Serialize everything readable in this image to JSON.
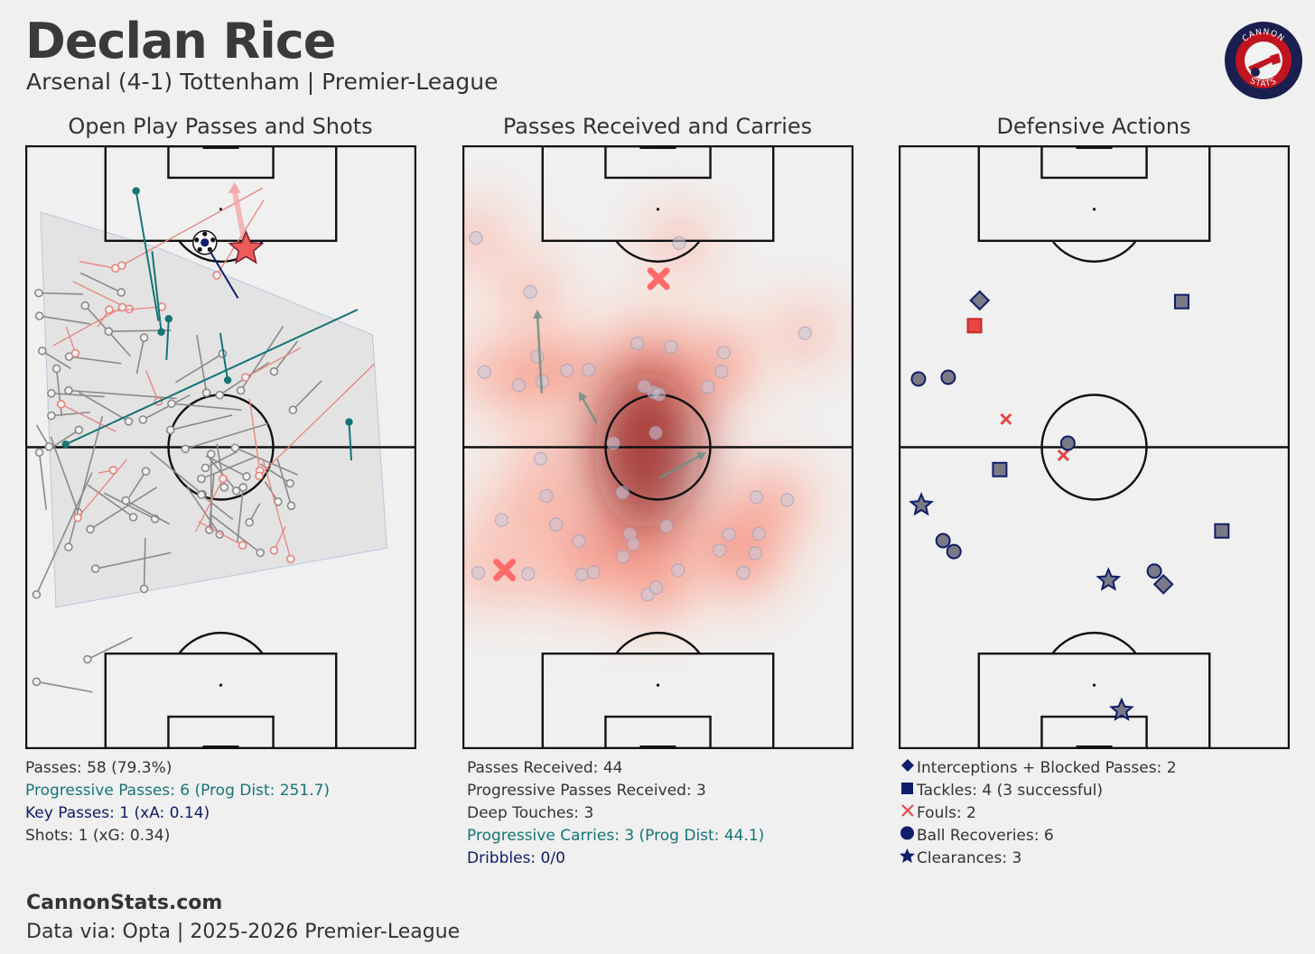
{
  "header": {
    "player": "Declan Rice",
    "match": "Arsenal (4-1) Tottenham | Premier-League",
    "logo_top_text": "CANNON",
    "logo_bottom_text": "STATS"
  },
  "panels": {
    "passes_title": "Open Play Passes and Shots",
    "received_title": "Passes Received and Carries",
    "defensive_title": "Defensive Actions"
  },
  "stats": {
    "passes": "Passes: 58 (79.3%)",
    "progressive_passes": "Progressive Passes: 6 (Prog Dist: 251.7)",
    "key_passes": "Key Passes: 1 (xA: 0.14)",
    "shots": "Shots: 1 (xG: 0.34)",
    "passes_received": "Passes Received: 44",
    "prog_received": "Progressive Passes Received: 3",
    "deep_touches": "Deep Touches: 3",
    "prog_carries": "Progressive Carries: 3 (Prog Dist: 44.1)",
    "dribbles": "Dribbles: 0/0"
  },
  "legend": {
    "interceptions": "Interceptions + Blocked Passes: 2",
    "tackles": "Tackles: 4 (3 successful)",
    "fouls": "Fouls: 2",
    "recoveries": "Ball Recoveries: 6",
    "clearances": "Clearances: 3"
  },
  "footer": {
    "site": "CannonStats.com",
    "source": "Data via: Opta | 2025-2026 Premier-League"
  },
  "colors": {
    "pitch_line": "#111111",
    "completed_pass": "#8a8a8a",
    "failed_pass": "#e8847c",
    "progressive_pass": "#167476",
    "key_pass": "#0f1d6a",
    "shot_star": "#ef5b5b",
    "tackle_success": "#7a7a86",
    "tackle_fail": "#e84545",
    "marker_edge": "#0f1d6a",
    "foul": "#e84545"
  },
  "chart_data": [
    {
      "type": "scatter",
      "title": "Open Play Passes and Shots",
      "units": "pitch coordinates: x 0-68 (left to right), y 0-105 (own goal to opponent goal)",
      "completed_passes": [
        [
          2.2,
          79.4,
          9.9,
          79.2
        ],
        [
          2.3,
          75.4,
          11.2,
          74.0
        ],
        [
          10.3,
          77.2,
          18.2,
          68.4
        ],
        [
          20.6,
          71.6,
          19.3,
          65.3
        ],
        [
          16.6,
          79.5,
          9.5,
          82.9
        ],
        [
          2.8,
          69.3,
          7.8,
          66.2
        ],
        [
          14.4,
          72.7,
          25.3,
          72.9
        ],
        [
          7.5,
          68.3,
          16.6,
          67.1
        ],
        [
          5.3,
          66.2,
          6.2,
          57.9
        ],
        [
          4.4,
          58.0,
          11.2,
          58.6
        ],
        [
          4.4,
          61.9,
          13.7,
          61.3
        ],
        [
          7.4,
          62.4,
          26.3,
          61.0
        ],
        [
          9.2,
          55.5,
          3.6,
          51.9
        ],
        [
          17.9,
          57.0,
          9.2,
          62.1
        ],
        [
          20.4,
          57.3,
          28.6,
          61.6
        ],
        [
          25.2,
          55.5,
          36.0,
          58.1
        ],
        [
          43.3,
          65.7,
          47.4,
          71.0
        ],
        [
          27.8,
          52.2,
          42.2,
          56.6
        ],
        [
          31.3,
          48.9,
          36.8,
          51.7
        ],
        [
          30.6,
          47.0,
          40.1,
          50.8
        ],
        [
          25.4,
          60.1,
          37.6,
          59.0
        ],
        [
          33.8,
          61.6,
          42.4,
          67.3
        ],
        [
          46.6,
          59.0,
          51.6,
          64.1
        ],
        [
          4.0,
          52.6,
          1.8,
          56.4
        ],
        [
          31.5,
          62.0,
          29.8,
          72.1
        ],
        [
          34.3,
          68.8,
          26.1,
          63.8
        ],
        [
          2.3,
          51.6,
          3.5,
          41.6
        ],
        [
          9.1,
          41.1,
          4.3,
          54.3
        ],
        [
          7.4,
          35.1,
          13.3,
          57.9
        ],
        [
          1.8,
          26.8,
          11.5,
          48.1
        ],
        [
          18.7,
          40.3,
          10.8,
          45.9
        ],
        [
          11.2,
          38.2,
          22.8,
          45.5
        ],
        [
          12.1,
          31.3,
          25.3,
          34.1
        ],
        [
          20.6,
          27.8,
          20.8,
          36.7
        ],
        [
          22.5,
          40.0,
          13.6,
          44.5
        ],
        [
          30.8,
          44.3,
          21.7,
          51.7
        ],
        [
          20.9,
          48.3,
          18.0,
          43.8
        ],
        [
          32.0,
          38.1,
          32.8,
          48.0
        ],
        [
          36.7,
          44.9,
          32.0,
          50.6
        ],
        [
          33.8,
          37.3,
          28.1,
          45.6
        ],
        [
          34.6,
          45.5,
          33.3,
          53.1
        ],
        [
          38.5,
          47.4,
          31.4,
          51.0
        ],
        [
          17.4,
          43.2,
          25.0,
          39.1
        ],
        [
          32.3,
          51.3,
          32.3,
          38.0
        ],
        [
          30.6,
          44.2,
          36.1,
          39.9
        ],
        [
          36.5,
          52.4,
          47.4,
          47.7
        ],
        [
          46.1,
          46.2,
          40.9,
          49.6
        ],
        [
          37.9,
          45.5,
          36.9,
          35.9
        ],
        [
          39.0,
          39.4,
          40.8,
          42.7
        ],
        [
          46.3,
          42.3,
          43.9,
          50.4
        ],
        [
          44.0,
          43.0,
          41.7,
          46.5
        ],
        [
          40.9,
          34.1,
          32.0,
          40.9
        ],
        [
          10.7,
          15.5,
          18.5,
          19.3
        ],
        [
          1.8,
          11.6,
          11.6,
          9.8
        ],
        [
          37.5,
          62.4,
          44.9,
          73.6
        ]
      ],
      "failed_passes": [
        [
          16.7,
          84.2,
          41.3,
          97.7
        ],
        [
          15.6,
          83.7,
          9.3,
          84.9
        ],
        [
          18.0,
          76.6,
          8.2,
          81.4
        ],
        [
          23.7,
          77.0,
          14.4,
          76.2
        ],
        [
          16.8,
          76.9,
          4.7,
          70.2
        ],
        [
          33.3,
          82.5,
          41.5,
          95.6
        ],
        [
          8.6,
          68.9,
          7.0,
          73.5
        ],
        [
          6.1,
          60.0,
          15.7,
          55.2
        ],
        [
          38.3,
          64.7,
          47.9,
          69.8
        ],
        [
          14.5,
          76.5,
          12.5,
          73.5
        ],
        [
          23.1,
          60.5,
          20.9,
          65.9
        ],
        [
          40.8,
          48.4,
          39.0,
          61.0
        ],
        [
          9.0,
          40.2,
          17.6,
          50.4
        ],
        [
          15.2,
          48.5,
          12.6,
          48.0
        ],
        [
          46.2,
          33.0,
          41.3,
          50.6
        ],
        [
          37.8,
          35.4,
          30.1,
          39.5
        ],
        [
          40.7,
          47.5,
          60.9,
          67.1
        ],
        [
          34.4,
          47.0,
          29.6,
          37.8
        ],
        [
          43.3,
          34.5,
          45.3,
          38.7
        ]
      ],
      "progressive_passes": [
        [
          19.2,
          97.2,
          23.1,
          74.5
        ],
        [
          23.6,
          72.6,
          22.0,
          86.7
        ],
        [
          6.9,
          53.0,
          57.9,
          76.5
        ],
        [
          35.2,
          64.2,
          33.9,
          72.4
        ],
        [
          24.9,
          74.9,
          24.5,
          67.7
        ],
        [
          56.4,
          56.9,
          56.8,
          50.2
        ]
      ],
      "key_passes": [
        [
          37.0,
          78.5,
          31.2,
          88.2
        ]
      ],
      "shots": [
        {
          "x": 38.4,
          "y": 87.1,
          "xG": 0.34,
          "end_x": 36.4,
          "end_y": 98.1
        }
      ],
      "ball_marker": {
        "x": 31.2,
        "y": 88.2
      },
      "convex_hull": [
        [
          2.5,
          93.5
        ],
        [
          5.2,
          24.6
        ],
        [
          63.0,
          34.9
        ],
        [
          60.5,
          72.1
        ],
        [
          23.2,
          87.2
        ]
      ]
    },
    {
      "type": "heatmap",
      "title": "Passes Received and Carries",
      "received_points": [
        [
          2.2,
          89.0
        ],
        [
          37.7,
          88.1
        ],
        [
          11.7,
          79.6
        ],
        [
          59.7,
          72.4
        ],
        [
          30.4,
          70.6
        ],
        [
          36.3,
          70.0
        ],
        [
          12.9,
          68.3
        ],
        [
          45.5,
          69.0
        ],
        [
          18.1,
          65.9
        ],
        [
          21.9,
          66.0
        ],
        [
          45.1,
          65.7
        ],
        [
          3.7,
          65.6
        ],
        [
          33.2,
          62.1
        ],
        [
          31.6,
          63.1
        ],
        [
          34.2,
          61.7
        ],
        [
          9.7,
          63.3
        ],
        [
          42.7,
          63.0
        ],
        [
          13.8,
          64.0
        ],
        [
          13.5,
          50.5
        ],
        [
          26.2,
          53.2
        ],
        [
          33.6,
          55.0
        ],
        [
          51.2,
          43.8
        ],
        [
          14.5,
          44.0
        ],
        [
          27.8,
          44.6
        ],
        [
          56.6,
          43.3
        ],
        [
          6.7,
          39.8
        ],
        [
          16.2,
          39.0
        ],
        [
          29.1,
          37.4
        ],
        [
          46.4,
          37.3
        ],
        [
          35.5,
          38.7
        ],
        [
          51.6,
          37.4
        ],
        [
          20.2,
          36.1
        ],
        [
          29.7,
          35.6
        ],
        [
          44.8,
          34.5
        ],
        [
          27.9,
          33.4
        ],
        [
          2.6,
          30.6
        ],
        [
          22.7,
          30.7
        ],
        [
          11.3,
          30.4
        ],
        [
          48.9,
          30.6
        ],
        [
          32.2,
          26.8
        ],
        [
          20.7,
          30.3
        ],
        [
          33.7,
          28.0
        ],
        [
          51.0,
          34.0
        ],
        [
          37.5,
          31.0
        ]
      ],
      "carries": [
        [
          13.7,
          61.9,
          12.9,
          76.5
        ],
        [
          23.3,
          56.7,
          20.2,
          62.2
        ],
        [
          34.2,
          47.1,
          42.4,
          51.6
        ]
      ],
      "fouls_won": [
        [
          34.1,
          81.9
        ],
        [
          7.2,
          31.1
        ]
      ]
    },
    {
      "type": "scatter",
      "title": "Defensive Actions",
      "interceptions": [
        [
          14.0,
          78.1
        ],
        [
          46.1,
          28.6
        ]
      ],
      "tackles_successful": [
        [
          49.3,
          77.9
        ],
        [
          17.5,
          48.6
        ],
        [
          56.3,
          37.9
        ]
      ],
      "tackles_failed": [
        [
          13.1,
          73.7
        ]
      ],
      "fouls": [
        [
          18.6,
          57.4
        ],
        [
          28.6,
          51.1
        ]
      ],
      "ball_recoveries": [
        [
          3.3,
          64.4
        ],
        [
          8.5,
          64.7
        ],
        [
          29.4,
          53.2
        ],
        [
          7.6,
          36.2
        ],
        [
          9.5,
          34.3
        ],
        [
          44.5,
          30.9
        ]
      ],
      "clearances": [
        [
          3.8,
          42.4
        ],
        [
          36.5,
          29.3
        ],
        [
          38.8,
          6.6
        ]
      ]
    }
  ]
}
